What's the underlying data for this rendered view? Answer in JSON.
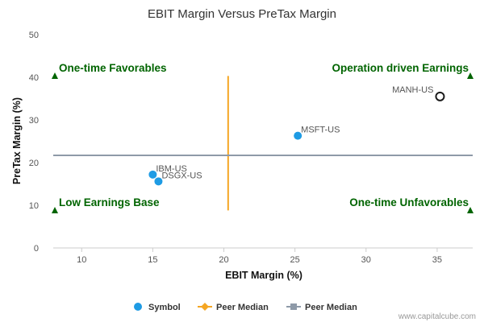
{
  "chart_data": {
    "type": "scatter",
    "title": "EBIT Margin Versus PreTax Margin",
    "xlabel": "EBIT Margin (%)",
    "ylabel": "PreTax Margin (%)",
    "xlim": [
      8,
      37.5
    ],
    "ylim": [
      0,
      50
    ],
    "xticks": [
      10,
      15,
      20,
      25,
      30,
      35
    ],
    "yticks": [
      0,
      10,
      20,
      30,
      40,
      50
    ],
    "grid": false,
    "legend_position": "bottom",
    "points": [
      {
        "label": "MANH-US",
        "x": 35.2,
        "y": 35.5,
        "highlight": true
      },
      {
        "label": "MSFT-US",
        "x": 25.2,
        "y": 26.3,
        "highlight": false
      },
      {
        "label": "IBM-US",
        "x": 15.0,
        "y": 17.2,
        "highlight": false
      },
      {
        "label": "DSGX-US",
        "x": 15.4,
        "y": 15.6,
        "highlight": false
      }
    ],
    "peer_median_x": 20.3,
    "peer_median_y": 21.7,
    "vertical_median_y_range": [
      8.8,
      40.3
    ],
    "quadrants": {
      "top_left": "One-time Favorables",
      "top_right": "Operation driven Earnings",
      "bottom_left": "Low Earnings Base",
      "bottom_right": "One-time Unfavorables"
    },
    "legend": [
      {
        "label": "Symbol",
        "marker": "circle",
        "color": "#1e9be4"
      },
      {
        "label": "Peer Median",
        "marker": "diamond-line",
        "color": "#f5a623"
      },
      {
        "label": "Peer Median",
        "marker": "square-line",
        "color": "#8e9aa8"
      }
    ],
    "colors": {
      "symbol": "#1e9be4",
      "highlight_stroke": "#1a1a1a",
      "vertical_median": "#f5a623",
      "horizontal_median": "#8e9aa8",
      "quadrant_text": "#006400",
      "axis_text": "#555555",
      "point_label": "#555555"
    }
  },
  "watermark": "www.capitalcube.com"
}
